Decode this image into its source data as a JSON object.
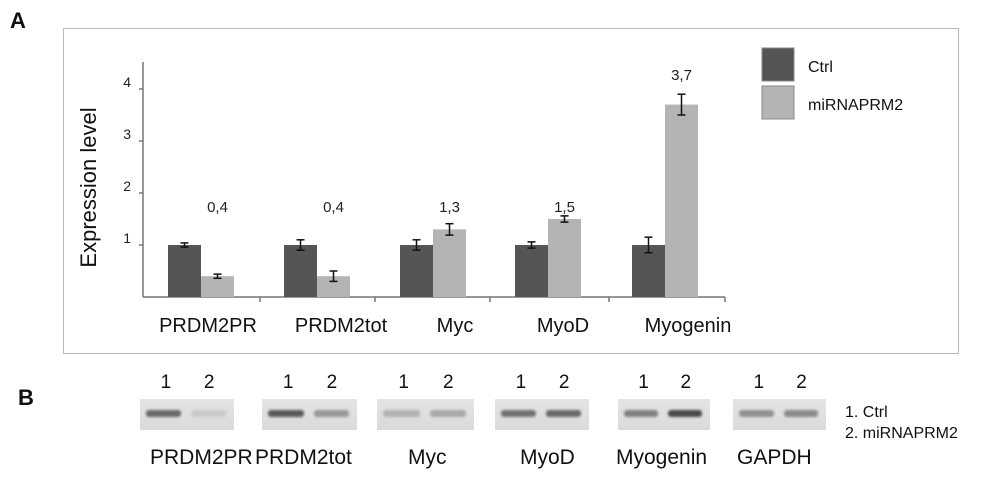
{
  "panel_a_label": "A",
  "panel_b_label": "B",
  "chart_data": {
    "type": "bar",
    "title": "",
    "ylabel": "Expression level",
    "xlabel": "",
    "categories": [
      "PRDM2PR",
      "PRDM2tot",
      "Myc",
      "MyoD",
      "Myogenin"
    ],
    "series": [
      {
        "name": "Ctrl",
        "values": [
          1.0,
          1.0,
          1.0,
          1.0,
          1.0
        ],
        "errors": [
          0.04,
          0.1,
          0.1,
          0.06,
          0.15
        ],
        "color": "#555555"
      },
      {
        "name": "miRNAPRM2",
        "values": [
          0.4,
          0.4,
          1.3,
          1.5,
          3.7
        ],
        "errors": [
          0.04,
          0.1,
          0.11,
          0.06,
          0.2
        ],
        "color": "#b4b4b4"
      }
    ],
    "value_labels": [
      "0,4",
      "0,4",
      "1,3",
      "1,5",
      "3,7"
    ],
    "yticks": [
      "1",
      "2",
      "3",
      "4"
    ],
    "ylim": [
      0,
      4.3
    ],
    "legend_position": "top-right",
    "grid": false
  },
  "gel": {
    "lane_labels": [
      "1",
      "2"
    ],
    "strips": [
      {
        "label": "PRDM2PR",
        "band1": 0.75,
        "band2": 0.15
      },
      {
        "label": "PRDM2tot",
        "band1": 0.85,
        "band2": 0.45
      },
      {
        "label": "Myc",
        "band1": 0.3,
        "band2": 0.35
      },
      {
        "label": "MyoD",
        "band1": 0.7,
        "band2": 0.75
      },
      {
        "label": "Myogenin",
        "band1": 0.6,
        "band2": 0.95
      },
      {
        "label": "GAPDH",
        "band1": 0.5,
        "band2": 0.55
      }
    ],
    "legend": [
      "1. Ctrl",
      "2. miRNAPRM2"
    ]
  }
}
